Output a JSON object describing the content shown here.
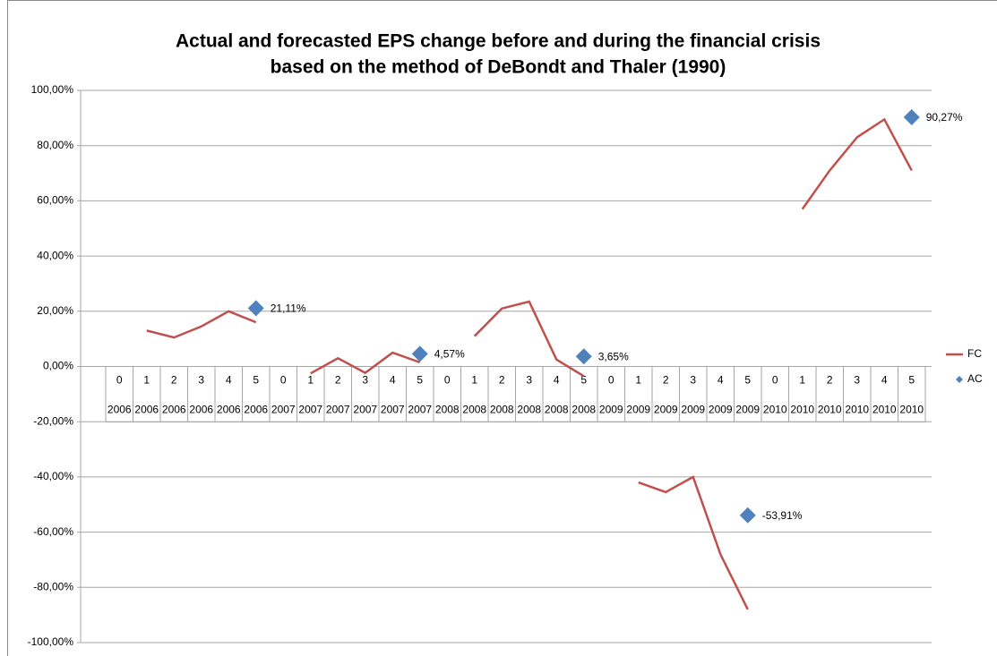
{
  "chart_data": {
    "type": "line",
    "title": [
      "Actual and forecasted EPS change before and during the financial crisis",
      "based on the method of DeBondt and Thaler (1990)"
    ],
    "categories": [
      [
        "0",
        "2006"
      ],
      [
        "1",
        "2006"
      ],
      [
        "2",
        "2006"
      ],
      [
        "3",
        "2006"
      ],
      [
        "4",
        "2006"
      ],
      [
        "5",
        "2006"
      ],
      [
        "0",
        "2007"
      ],
      [
        "1",
        "2007"
      ],
      [
        "2",
        "2007"
      ],
      [
        "3",
        "2007"
      ],
      [
        "4",
        "2007"
      ],
      [
        "5",
        "2007"
      ],
      [
        "0",
        "2008"
      ],
      [
        "1",
        "2008"
      ],
      [
        "2",
        "2008"
      ],
      [
        "3",
        "2008"
      ],
      [
        "4",
        "2008"
      ],
      [
        "5",
        "2008"
      ],
      [
        "0",
        "2009"
      ],
      [
        "1",
        "2009"
      ],
      [
        "2",
        "2009"
      ],
      [
        "3",
        "2009"
      ],
      [
        "4",
        "2009"
      ],
      [
        "5",
        "2009"
      ],
      [
        "0",
        "2010"
      ],
      [
        "1",
        "2010"
      ],
      [
        "2",
        "2010"
      ],
      [
        "3",
        "2010"
      ],
      [
        "4",
        "2010"
      ],
      [
        "5",
        "2010"
      ]
    ],
    "series": [
      {
        "name": "FC",
        "color": "#c0504d",
        "values": [
          null,
          13,
          10.5,
          14.5,
          20,
          16,
          null,
          -2.5,
          3,
          -2.3,
          5,
          1.5,
          null,
          11,
          21,
          23.5,
          2.5,
          -3.5,
          null,
          -42,
          -45.5,
          -40,
          -68,
          -88,
          null,
          57,
          71,
          83,
          89.5,
          71
        ]
      },
      {
        "name": "AC",
        "color": "#4f81bd",
        "marker": "diamond",
        "values": [
          null,
          null,
          null,
          null,
          null,
          21.11,
          null,
          null,
          null,
          null,
          null,
          4.57,
          null,
          null,
          null,
          null,
          null,
          3.65,
          null,
          null,
          null,
          null,
          null,
          -53.91,
          null,
          null,
          null,
          null,
          null,
          90.27
        ],
        "value_labels": [
          null,
          null,
          null,
          null,
          null,
          "21,11%",
          null,
          null,
          null,
          null,
          null,
          "4,57%",
          null,
          null,
          null,
          null,
          null,
          "3,65%",
          null,
          null,
          null,
          null,
          null,
          "-53,91%",
          null,
          null,
          null,
          null,
          null,
          "90,27%"
        ]
      }
    ],
    "ylim": [
      -100,
      100
    ],
    "yticks": [
      {
        "value": -100,
        "label": "-100,00%"
      },
      {
        "value": -80,
        "label": "-80,00%"
      },
      {
        "value": -60,
        "label": "-60,00%"
      },
      {
        "value": -40,
        "label": "-40,00%"
      },
      {
        "value": -20,
        "label": "-20,00%"
      },
      {
        "value": 0,
        "label": "0,00%"
      },
      {
        "value": 20,
        "label": "20,00%"
      },
      {
        "value": 40,
        "label": "40,00%"
      },
      {
        "value": 60,
        "label": "60,00%"
      },
      {
        "value": 80,
        "label": "80,00%"
      },
      {
        "value": 100,
        "label": "100,00%"
      }
    ],
    "grid": true,
    "legend": "right"
  }
}
